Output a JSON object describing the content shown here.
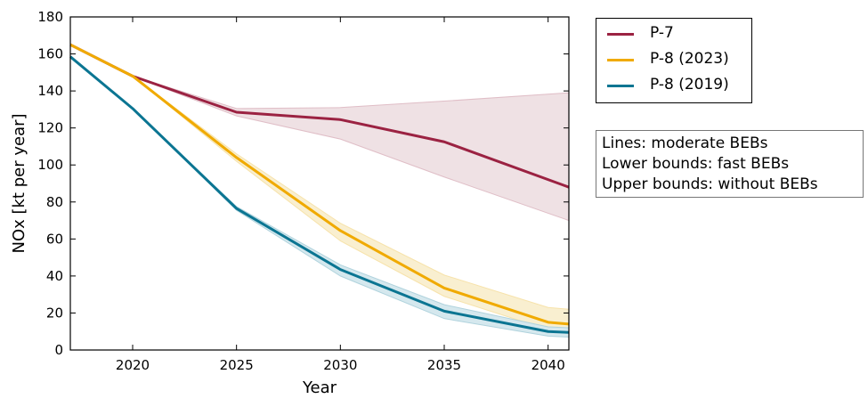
{
  "chart_data": {
    "type": "line",
    "xlabel": "Year",
    "ylabel": "NOx [kt per year]",
    "xlim": [
      2017,
      2041
    ],
    "ylim": [
      0,
      180
    ],
    "xticks": [
      2020,
      2025,
      2030,
      2035,
      2040
    ],
    "yticks": [
      0,
      20,
      40,
      60,
      80,
      100,
      120,
      140,
      160,
      180
    ],
    "grid": false,
    "legend_position": "outside-right",
    "series": [
      {
        "name": "P-7",
        "color": "#9b2242",
        "band_color": "#efe1e4",
        "x": [
          2017,
          2020,
          2025,
          2030,
          2035,
          2041
        ],
        "y": [
          165,
          148,
          128.5,
          124.5,
          112.5,
          88
        ],
        "lower": [
          165,
          148,
          126.5,
          114,
          93.5,
          70
        ],
        "upper": [
          165,
          148,
          130.5,
          131,
          134.5,
          139
        ]
      },
      {
        "name": "P-8 (2023)",
        "color": "#f0aa00",
        "band_color": "#f9efd0",
        "x": [
          2017,
          2020,
          2025,
          2030,
          2035,
          2040,
          2041
        ],
        "y": [
          165,
          148,
          104,
          64.5,
          33.5,
          15,
          14
        ],
        "lower": [
          165,
          148,
          102,
          59,
          29,
          11,
          10.5
        ],
        "upper": [
          165,
          148,
          106,
          68.5,
          40.5,
          23,
          22
        ]
      },
      {
        "name": "P-8 (2019)",
        "color": "#0b7592",
        "band_color": "#d5e8ee",
        "x": [
          2017,
          2020,
          2025,
          2030,
          2035,
          2040,
          2041
        ],
        "y": [
          158.5,
          130.5,
          76.5,
          43.5,
          21,
          10,
          9.5
        ],
        "lower": [
          158.5,
          130.5,
          75.5,
          40,
          17,
          7.5,
          7
        ],
        "upper": [
          158.5,
          130.5,
          77.5,
          46,
          24.5,
          12.5,
          12
        ]
      }
    ]
  },
  "note": {
    "lines": [
      "Lines: moderate BEBs",
      "Lower bounds: fast BEBs",
      "Upper bounds: without BEBs"
    ]
  }
}
